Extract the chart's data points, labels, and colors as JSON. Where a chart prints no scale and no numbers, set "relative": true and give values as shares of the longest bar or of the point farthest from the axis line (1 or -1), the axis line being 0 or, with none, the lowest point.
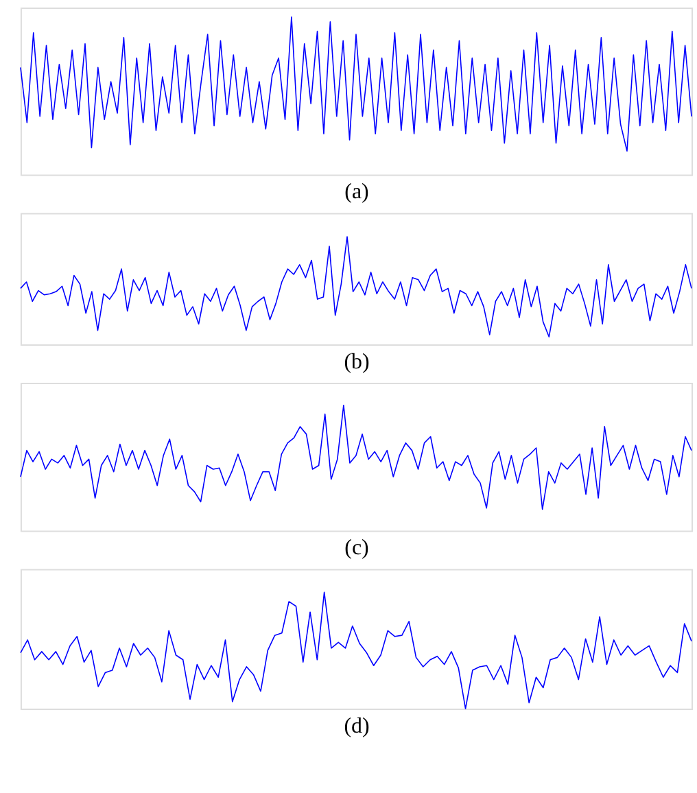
{
  "chart_data": [
    {
      "type": "line",
      "relative": true,
      "xlabel": "(a)",
      "color": "#0000ff",
      "tick_labels": false,
      "categories": [
        null,
        null,
        null,
        null,
        null,
        null,
        null,
        null,
        null,
        null,
        null,
        null,
        null,
        null,
        null,
        null,
        null,
        null,
        null,
        null,
        null,
        null,
        null,
        null,
        null,
        null,
        null,
        null,
        null,
        null,
        null,
        null,
        null,
        null,
        null,
        null,
        null,
        null,
        null,
        null,
        null,
        null,
        null,
        null,
        null,
        null,
        null,
        null,
        null,
        null,
        null,
        null,
        null,
        null,
        null,
        null,
        null,
        null,
        null,
        null,
        null,
        null,
        null,
        null,
        null,
        null,
        null,
        null,
        null,
        null,
        null,
        null,
        null,
        null,
        null,
        null,
        null,
        null,
        null,
        null,
        null,
        null,
        null,
        null,
        null,
        null,
        null,
        null,
        null,
        null,
        null,
        null,
        null,
        null,
        null,
        null,
        null,
        null,
        null,
        null,
        null,
        null,
        null,
        null,
        null
      ],
      "values": [
        0.68,
        0.33,
        0.9,
        0.37,
        0.82,
        0.35,
        0.7,
        0.42,
        0.79,
        0.38,
        0.83,
        0.17,
        0.68,
        0.35,
        0.59,
        0.39,
        0.87,
        0.19,
        0.74,
        0.33,
        0.83,
        0.28,
        0.62,
        0.39,
        0.82,
        0.33,
        0.76,
        0.26,
        0.59,
        0.89,
        0.31,
        0.85,
        0.38,
        0.76,
        0.37,
        0.68,
        0.33,
        0.59,
        0.29,
        0.63,
        0.74,
        0.35,
        1,
        0.28,
        0.83,
        0.45,
        0.91,
        0.26,
        0.97,
        0.37,
        0.85,
        0.22,
        0.89,
        0.37,
        0.74,
        0.26,
        0.74,
        0.33,
        0.9,
        0.28,
        0.76,
        0.26,
        0.89,
        0.33,
        0.79,
        0.28,
        0.68,
        0.31,
        0.85,
        0.26,
        0.74,
        0.33,
        0.7,
        0.28,
        0.74,
        0.2,
        0.66,
        0.26,
        0.79,
        0.26,
        0.9,
        0.33,
        0.82,
        0.2,
        0.69,
        0.31,
        0.79,
        0.26,
        0.7,
        0.32,
        0.87,
        0.26,
        0.74,
        0.32,
        0.15,
        0.76,
        0.31,
        0.85,
        0.33,
        0.7,
        0.28,
        0.91,
        0.33,
        0.82,
        0.37
      ]
    },
    {
      "type": "line",
      "relative": true,
      "xlabel": "(b)",
      "color": "#0000ff",
      "tick_labels": false,
      "categories": [
        null,
        null,
        null,
        null,
        null,
        null,
        null,
        null,
        null,
        null,
        null,
        null,
        null,
        null,
        null,
        null,
        null,
        null,
        null,
        null,
        null,
        null,
        null,
        null,
        null,
        null,
        null,
        null,
        null,
        null,
        null,
        null,
        null,
        null,
        null,
        null,
        null,
        null,
        null,
        null,
        null,
        null,
        null,
        null,
        null,
        null,
        null,
        null,
        null,
        null,
        null,
        null,
        null,
        null,
        null,
        null,
        null,
        null,
        null,
        null,
        null,
        null,
        null,
        null,
        null,
        null,
        null,
        null,
        null,
        null,
        null,
        null,
        null,
        null,
        null,
        null,
        null,
        null,
        null,
        null,
        null,
        null,
        null,
        null,
        null,
        null,
        null,
        null,
        null,
        null,
        null,
        null,
        null,
        null,
        null,
        null,
        null,
        null,
        null,
        null,
        null,
        null,
        null,
        null,
        null,
        null,
        null,
        null,
        null,
        null,
        null,
        null,
        null,
        null
      ],
      "values": [
        0.52,
        0.58,
        0.4,
        0.5,
        0.46,
        0.47,
        0.49,
        0.54,
        0.36,
        0.64,
        0.56,
        0.29,
        0.49,
        0.13,
        0.47,
        0.42,
        0.5,
        0.7,
        0.31,
        0.6,
        0.5,
        0.62,
        0.38,
        0.5,
        0.36,
        0.67,
        0.44,
        0.5,
        0.27,
        0.35,
        0.19,
        0.47,
        0.4,
        0.52,
        0.31,
        0.46,
        0.54,
        0.36,
        0.13,
        0.35,
        0.4,
        0.44,
        0.23,
        0.38,
        0.58,
        0.7,
        0.65,
        0.74,
        0.62,
        0.78,
        0.42,
        0.44,
        0.91,
        0.27,
        0.56,
        1,
        0.49,
        0.58,
        0.46,
        0.67,
        0.47,
        0.58,
        0.49,
        0.42,
        0.58,
        0.36,
        0.62,
        0.6,
        0.5,
        0.64,
        0.7,
        0.49,
        0.52,
        0.29,
        0.5,
        0.47,
        0.36,
        0.49,
        0.35,
        0.09,
        0.4,
        0.49,
        0.36,
        0.52,
        0.25,
        0.6,
        0.35,
        0.54,
        0.21,
        0.07,
        0.38,
        0.31,
        0.52,
        0.47,
        0.56,
        0.38,
        0.17,
        0.6,
        0.19,
        0.74,
        0.4,
        0.5,
        0.6,
        0.4,
        0.52,
        0.56,
        0.22,
        0.47,
        0.42,
        0.54,
        0.29,
        0.49,
        0.74,
        0.52
      ]
    },
    {
      "type": "line",
      "relative": true,
      "xlabel": "(c)",
      "color": "#0000ff",
      "tick_labels": false,
      "categories": [
        null,
        null,
        null,
        null,
        null,
        null,
        null,
        null,
        null,
        null,
        null,
        null,
        null,
        null,
        null,
        null,
        null,
        null,
        null,
        null,
        null,
        null,
        null,
        null,
        null,
        null,
        null,
        null,
        null,
        null,
        null,
        null,
        null,
        null,
        null,
        null,
        null,
        null,
        null,
        null,
        null,
        null,
        null,
        null,
        null,
        null,
        null,
        null,
        null,
        null,
        null,
        null,
        null,
        null,
        null,
        null,
        null,
        null,
        null,
        null,
        null,
        null,
        null,
        null,
        null,
        null,
        null,
        null,
        null,
        null,
        null,
        null,
        null,
        null,
        null,
        null,
        null,
        null,
        null,
        null,
        null,
        null,
        null,
        null,
        null,
        null,
        null,
        null,
        null,
        null,
        null,
        null,
        null,
        null,
        null,
        null,
        null,
        null,
        null,
        null,
        null,
        null,
        null,
        null,
        null,
        null,
        null,
        null,
        null
      ],
      "values": [
        0.43,
        0.64,
        0.55,
        0.63,
        0.49,
        0.57,
        0.54,
        0.6,
        0.5,
        0.68,
        0.52,
        0.57,
        0.26,
        0.52,
        0.6,
        0.47,
        0.69,
        0.52,
        0.64,
        0.49,
        0.64,
        0.52,
        0.36,
        0.6,
        0.73,
        0.49,
        0.6,
        0.36,
        0.31,
        0.23,
        0.52,
        0.49,
        0.5,
        0.36,
        0.47,
        0.61,
        0.47,
        0.24,
        0.36,
        0.47,
        0.47,
        0.32,
        0.61,
        0.7,
        0.74,
        0.83,
        0.77,
        0.49,
        0.52,
        0.93,
        0.41,
        0.57,
        1,
        0.54,
        0.6,
        0.77,
        0.57,
        0.63,
        0.55,
        0.64,
        0.43,
        0.6,
        0.7,
        0.64,
        0.49,
        0.7,
        0.75,
        0.5,
        0.55,
        0.4,
        0.55,
        0.52,
        0.6,
        0.45,
        0.38,
        0.18,
        0.54,
        0.63,
        0.41,
        0.6,
        0.38,
        0.57,
        0.61,
        0.66,
        0.17,
        0.47,
        0.38,
        0.54,
        0.49,
        0.55,
        0.61,
        0.29,
        0.66,
        0.26,
        0.83,
        0.52,
        0.6,
        0.68,
        0.49,
        0.68,
        0.5,
        0.4,
        0.57,
        0.55,
        0.29,
        0.6,
        0.43,
        0.75,
        0.64
      ]
    },
    {
      "type": "line",
      "relative": true,
      "xlabel": "(d)",
      "color": "#0000ff",
      "tick_labels": false,
      "categories": [
        null,
        null,
        null,
        null,
        null,
        null,
        null,
        null,
        null,
        null,
        null,
        null,
        null,
        null,
        null,
        null,
        null,
        null,
        null,
        null,
        null,
        null,
        null,
        null,
        null,
        null,
        null,
        null,
        null,
        null,
        null,
        null,
        null,
        null,
        null,
        null,
        null,
        null,
        null,
        null,
        null,
        null,
        null,
        null,
        null,
        null,
        null,
        null,
        null,
        null,
        null,
        null,
        null,
        null,
        null,
        null,
        null,
        null,
        null,
        null,
        null,
        null,
        null,
        null,
        null,
        null,
        null,
        null,
        null,
        null,
        null,
        null,
        null,
        null,
        null,
        null,
        null,
        null,
        null,
        null,
        null,
        null,
        null,
        null,
        null,
        null,
        null,
        null,
        null,
        null,
        null,
        null,
        null,
        null,
        null,
        null
      ],
      "values": [
        0.48,
        0.59,
        0.42,
        0.49,
        0.42,
        0.49,
        0.38,
        0.54,
        0.62,
        0.4,
        0.5,
        0.19,
        0.31,
        0.33,
        0.52,
        0.36,
        0.56,
        0.46,
        0.52,
        0.44,
        0.23,
        0.67,
        0.46,
        0.42,
        0.08,
        0.38,
        0.25,
        0.37,
        0.27,
        0.59,
        0.06,
        0.25,
        0.36,
        0.29,
        0.15,
        0.5,
        0.63,
        0.65,
        0.92,
        0.88,
        0.4,
        0.83,
        0.42,
        1,
        0.52,
        0.57,
        0.52,
        0.71,
        0.56,
        0.48,
        0.37,
        0.46,
        0.67,
        0.62,
        0.63,
        0.75,
        0.44,
        0.36,
        0.42,
        0.45,
        0.38,
        0.49,
        0.35,
        0,
        0.33,
        0.36,
        0.37,
        0.25,
        0.37,
        0.21,
        0.63,
        0.44,
        0.05,
        0.27,
        0.18,
        0.42,
        0.44,
        0.52,
        0.44,
        0.25,
        0.6,
        0.4,
        0.79,
        0.38,
        0.59,
        0.46,
        0.54,
        0.46,
        0.5,
        0.54,
        0.4,
        0.27,
        0.37,
        0.31,
        0.73,
        0.58
      ]
    }
  ]
}
